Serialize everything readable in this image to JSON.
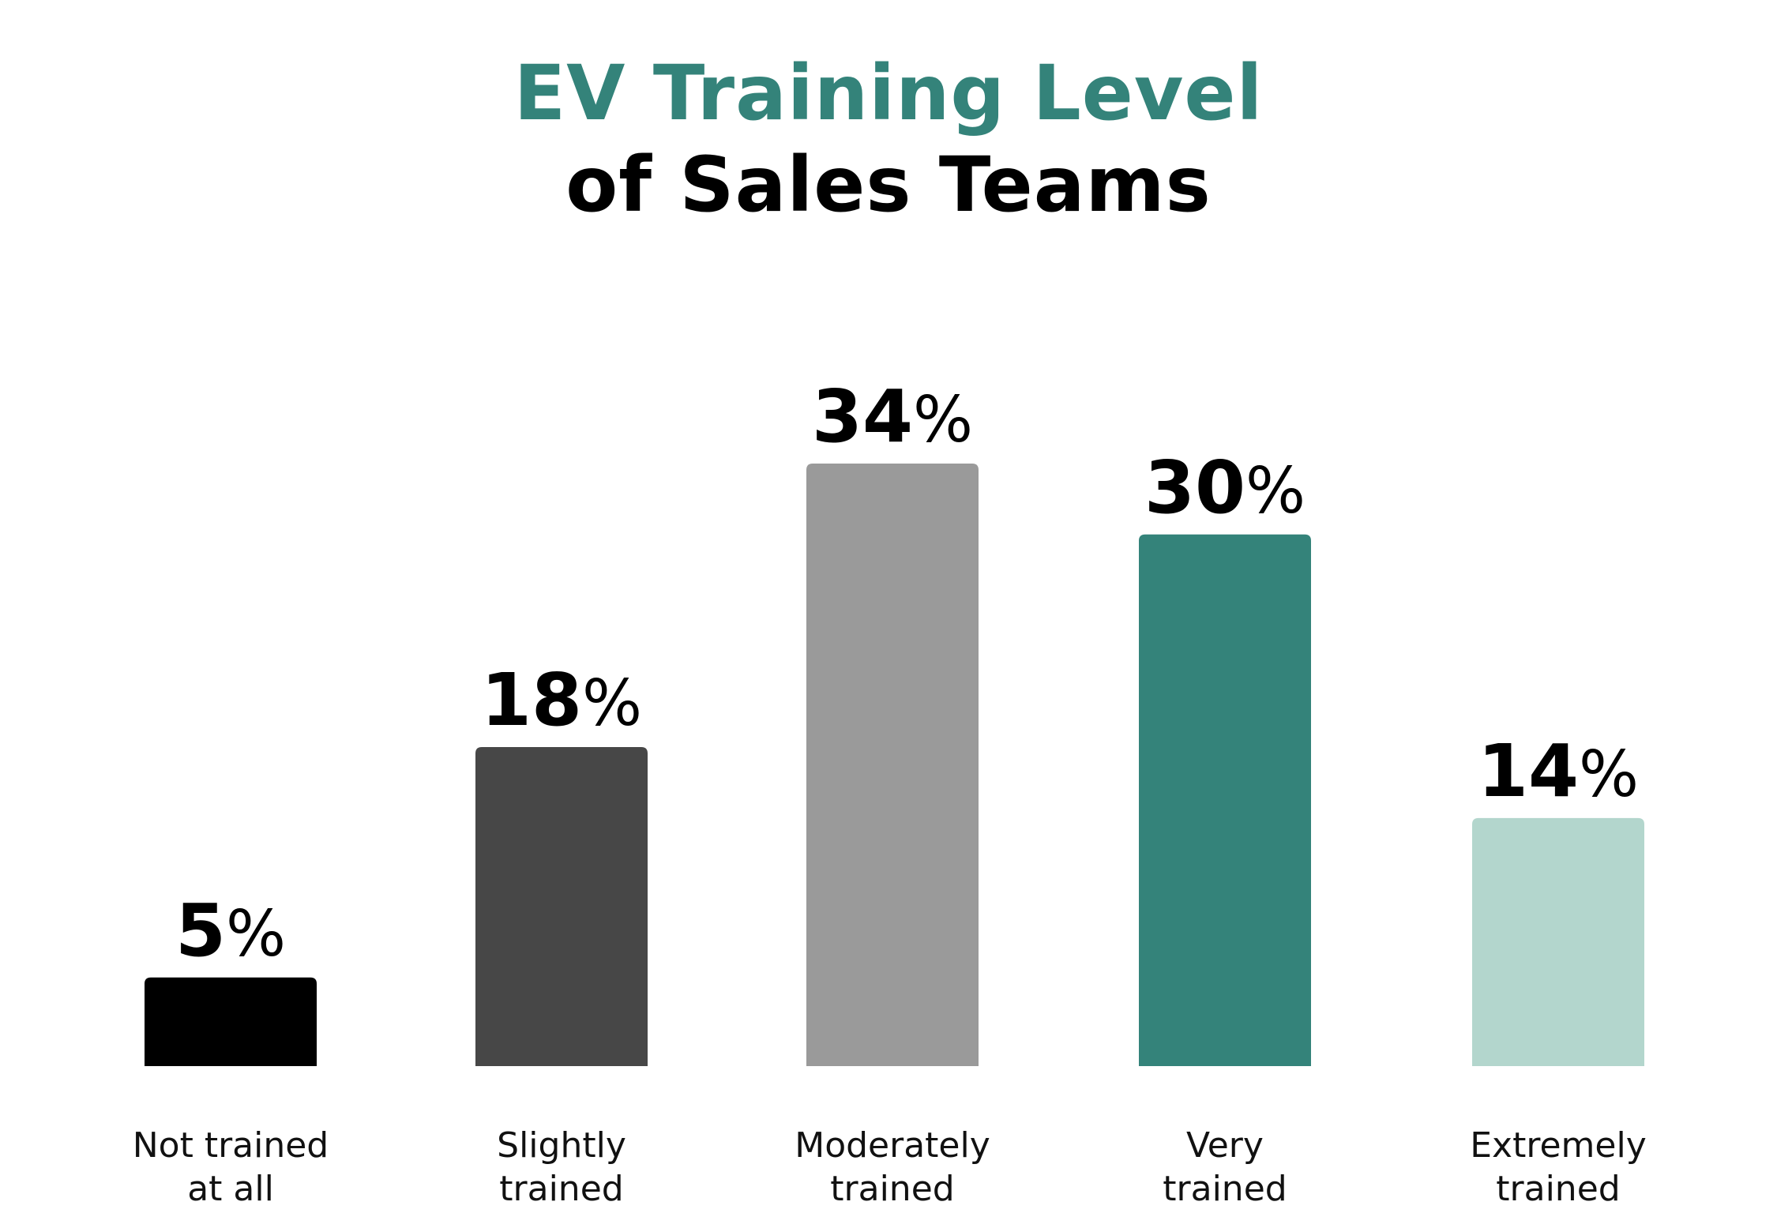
{
  "chart_data": {
    "type": "bar",
    "title": "EV Training Level",
    "subtitle": "of Sales Teams",
    "categories": [
      [
        "Not trained",
        "at all"
      ],
      [
        "Slightly",
        "trained"
      ],
      [
        "Moderately",
        "trained"
      ],
      [
        "Very",
        "trained"
      ],
      [
        "Extremely",
        "trained"
      ]
    ],
    "values": [
      5,
      18,
      34,
      30,
      14
    ],
    "value_suffix": "%",
    "colors": [
      "#000000",
      "#474747",
      "#9a9a9a",
      "#34837a",
      "#b3d6cd"
    ],
    "title_color": "#34837a",
    "xlabel": "",
    "ylabel": "",
    "ylim": [
      0,
      34
    ],
    "grid": false
  }
}
